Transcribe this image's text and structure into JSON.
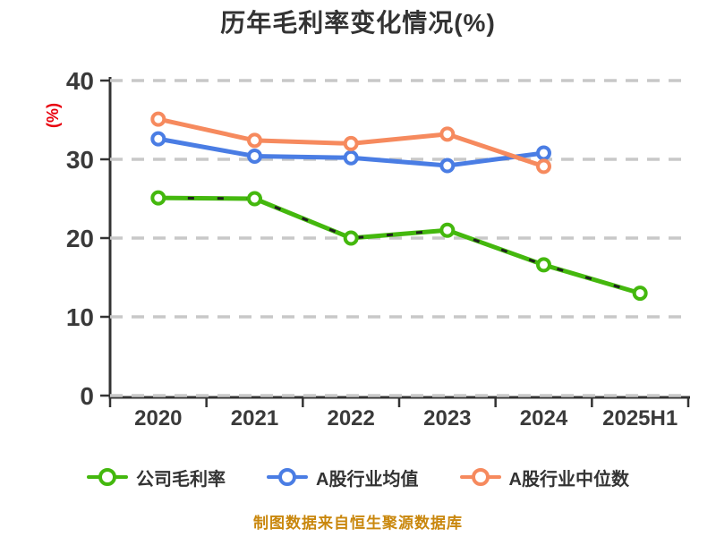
{
  "title": "历年毛利率变化情况(%)",
  "y_axis_label": "(%)",
  "footer": "制图数据来自恒生聚源数据库",
  "colors": {
    "background": "#ffffff",
    "title": "#333333",
    "axis": "#333333",
    "gridline": "#c8c8c8",
    "tick_label": "#3a3a3a",
    "y_axis_label": "#e8000d",
    "footer": "#c9870d",
    "series_company": "#44b80e",
    "series_industry_avg": "#4a7de4",
    "series_industry_median": "#f68a5e"
  },
  "chart_data": {
    "type": "line",
    "title": "历年毛利率变化情况(%)",
    "xlabel": "",
    "ylabel": "(%)",
    "categories": [
      "2020",
      "2021",
      "2022",
      "2023",
      "2024",
      "2025H1"
    ],
    "yticks": [
      0,
      10,
      20,
      30,
      40
    ],
    "ylim": [
      0,
      40
    ],
    "grid": "horizontal-dashed",
    "legend_position": "bottom",
    "series": [
      {
        "name": "公司毛利率",
        "color": "#44b80e",
        "style": "solid-with-dark-dash-overlay",
        "marker": "circle-white-fill",
        "dash_overlay": true,
        "values": [
          25.1,
          25.0,
          20.0,
          21.0,
          16.6,
          13.0
        ]
      },
      {
        "name": "A股行业均值",
        "color": "#4a7de4",
        "style": "solid",
        "marker": "circle-white-fill",
        "dash_overlay": false,
        "values": [
          32.6,
          30.4,
          30.2,
          29.2,
          30.8,
          null
        ]
      },
      {
        "name": "A股行业中位数",
        "color": "#f68a5e",
        "style": "solid",
        "marker": "circle-white-fill",
        "dash_overlay": false,
        "values": [
          35.1,
          32.4,
          32.0,
          33.2,
          29.1,
          null
        ]
      }
    ]
  }
}
